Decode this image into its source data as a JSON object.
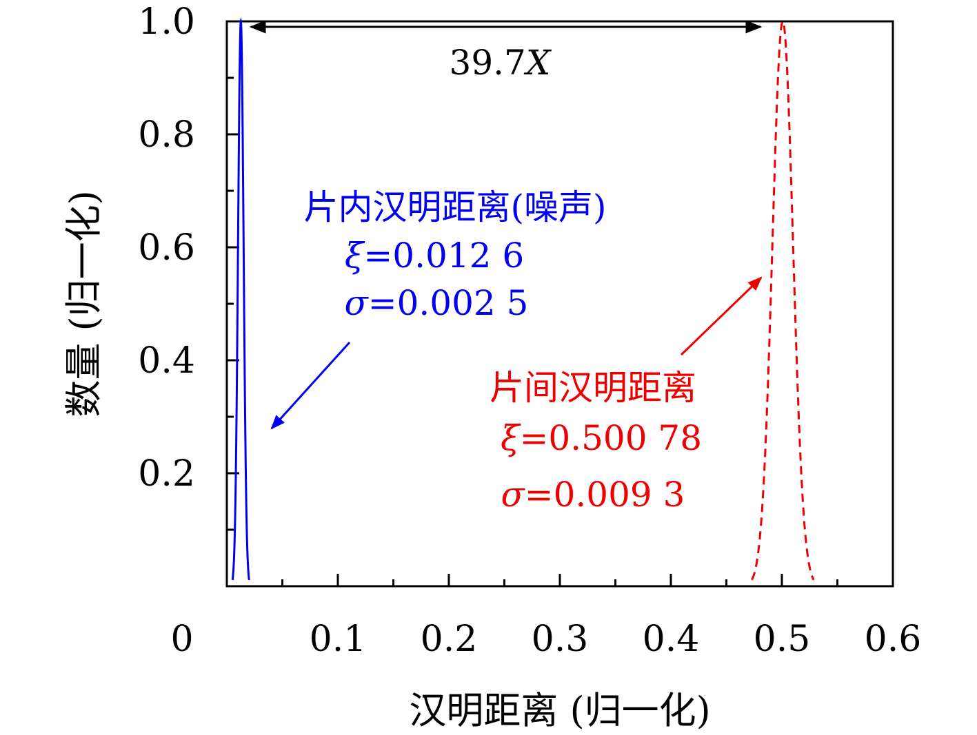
{
  "chart_data": {
    "type": "line",
    "title": "",
    "xlabel": "汉明距离 (归一化)",
    "ylabel": "数量 (归一化)",
    "xlim": [
      0,
      0.6
    ],
    "ylim": [
      0,
      1.0
    ],
    "x_ticks": [
      0.1,
      0.2,
      0.3,
      0.4,
      0.5,
      0.6
    ],
    "x_tick_labels": [
      "0.1",
      "0.2",
      "0.3",
      "0.4",
      "0.5",
      "0.6"
    ],
    "origin_label": "0",
    "y_ticks": [
      0.2,
      0.4,
      0.6,
      0.8,
      1.0
    ],
    "y_tick_labels": [
      "0.2",
      "0.4",
      "0.6",
      "0.8",
      "1.0"
    ],
    "grid": false,
    "series": [
      {
        "label": "片内汉明距离(噪声)",
        "color": "#0000ee",
        "dash": "solid",
        "mean": 0.0126,
        "std": 0.0025,
        "x": [
          0.0051,
          0.0076,
          0.0101,
          0.0116,
          0.0126,
          0.0136,
          0.0151,
          0.0176,
          0.0201
        ],
        "y": [
          0.0,
          0.011,
          0.135,
          0.45,
          1.0,
          0.45,
          0.135,
          0.011,
          0.0
        ]
      },
      {
        "label": "片间汉明距离",
        "color": "#ee0000",
        "dash": "dashed",
        "mean": 0.50078,
        "std": 0.0093,
        "x": [
          0.4729,
          0.4822,
          0.4915,
          0.4959,
          0.50078,
          0.5057,
          0.5101,
          0.5194,
          0.5287
        ],
        "y": [
          0.0,
          0.135,
          0.607,
          0.87,
          1.0,
          0.87,
          0.607,
          0.135,
          0.0
        ]
      }
    ],
    "annotations": {
      "span_text": "39.7",
      "span_var": "X",
      "blue_title": "片内汉明距离(噪声)",
      "blue_xi_value": "0.012 6",
      "blue_sigma_value": "0.002 5",
      "red_title": "片间汉明距离",
      "red_xi_value": "0.500 78",
      "red_sigma_value": "0.009 3",
      "xi_symbol": "ξ",
      "sigma_symbol": "σ",
      "equals": "="
    }
  }
}
